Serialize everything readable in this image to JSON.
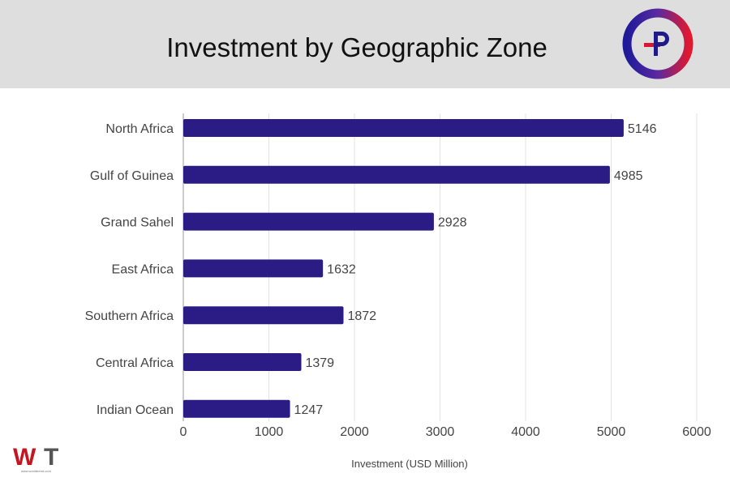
{
  "header": {
    "title": "Investment by Geographic Zone"
  },
  "logos": {
    "top_right": "P",
    "bottom_left": "WT",
    "bottom_left_url": "www.worldtrend.com"
  },
  "chart_data": {
    "type": "bar",
    "orientation": "horizontal",
    "title": "Investment by Geographic Zone",
    "categories": [
      "North Africa",
      "Gulf of Guinea",
      "Grand Sahel",
      "East Africa",
      "Southern Africa",
      "Central Africa",
      "Indian Ocean"
    ],
    "values": [
      5146,
      4985,
      2928,
      1632,
      1872,
      1379,
      1247
    ],
    "xlabel": "Investment (USD Million)",
    "ylabel": "",
    "xlim": [
      0,
      6000
    ],
    "xticks": [
      0,
      1000,
      2000,
      3000,
      4000,
      5000,
      6000
    ],
    "grid": true,
    "bar_color": "#2b1b85"
  }
}
